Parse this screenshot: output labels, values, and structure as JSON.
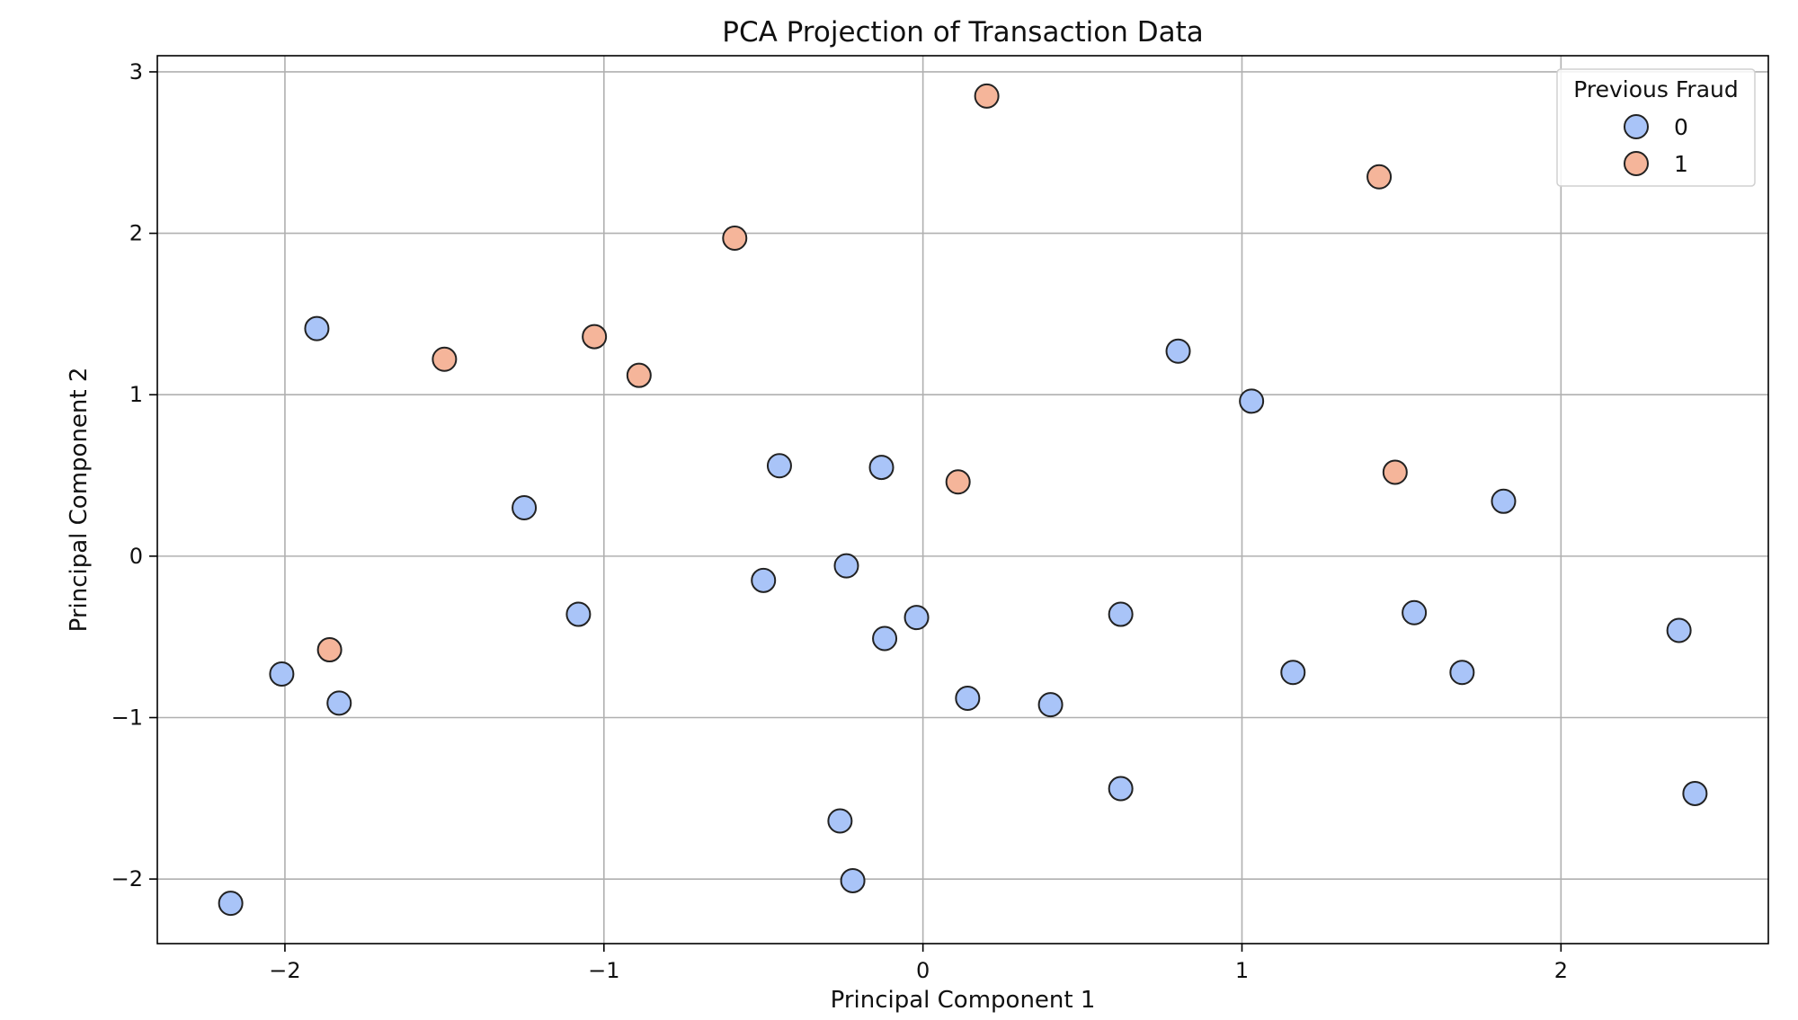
{
  "chart_data": {
    "type": "scatter",
    "title": "PCA Projection of Transaction Data",
    "xlabel": "Principal Component 1",
    "ylabel": "Principal Component 2",
    "xlim": [
      -2.4,
      2.65
    ],
    "ylim": [
      -2.4,
      3.1
    ],
    "xticks": [
      -2,
      -1,
      0,
      1,
      2
    ],
    "yticks": [
      -2,
      -1,
      0,
      1,
      2,
      3
    ],
    "xtick_labels": [
      "−2",
      "−1",
      "0",
      "1",
      "2"
    ],
    "ytick_labels": [
      "−2",
      "−1",
      "0",
      "1",
      "2",
      "3"
    ],
    "grid": true,
    "legend": {
      "title": "Previous Fraud",
      "position": "top-right"
    },
    "series": [
      {
        "name": "0",
        "color": "#a9c4f8",
        "points": [
          {
            "x": -1.9,
            "y": 1.41
          },
          {
            "x": -2.01,
            "y": -0.73
          },
          {
            "x": -1.83,
            "y": -0.91
          },
          {
            "x": -2.17,
            "y": -2.15
          },
          {
            "x": -1.25,
            "y": 0.3
          },
          {
            "x": -1.08,
            "y": -0.36
          },
          {
            "x": -0.45,
            "y": 0.56
          },
          {
            "x": -0.5,
            "y": -0.15
          },
          {
            "x": -0.24,
            "y": -0.06
          },
          {
            "x": -0.13,
            "y": 0.55
          },
          {
            "x": -0.12,
            "y": -0.51
          },
          {
            "x": -0.02,
            "y": -0.38
          },
          {
            "x": 0.14,
            "y": -0.88
          },
          {
            "x": 0.4,
            "y": -0.92
          },
          {
            "x": 0.62,
            "y": -0.36
          },
          {
            "x": 0.62,
            "y": -1.44
          },
          {
            "x": -0.26,
            "y": -1.64
          },
          {
            "x": -0.22,
            "y": -2.01
          },
          {
            "x": 0.8,
            "y": 1.27
          },
          {
            "x": 1.03,
            "y": 0.96
          },
          {
            "x": 1.16,
            "y": -0.72
          },
          {
            "x": 1.54,
            "y": -0.35
          },
          {
            "x": 1.69,
            "y": -0.72
          },
          {
            "x": 1.82,
            "y": 0.34
          },
          {
            "x": 2.37,
            "y": -0.46
          },
          {
            "x": 2.42,
            "y": -1.47
          }
        ]
      },
      {
        "name": "1",
        "color": "#f5b59a",
        "points": [
          {
            "x": 0.2,
            "y": 2.85
          },
          {
            "x": 1.43,
            "y": 2.35
          },
          {
            "x": -0.59,
            "y": 1.97
          },
          {
            "x": -1.5,
            "y": 1.22
          },
          {
            "x": -1.03,
            "y": 1.36
          },
          {
            "x": -0.89,
            "y": 1.12
          },
          {
            "x": 0.11,
            "y": 0.46
          },
          {
            "x": 1.48,
            "y": 0.52
          },
          {
            "x": -1.86,
            "y": -0.58
          }
        ]
      }
    ]
  }
}
